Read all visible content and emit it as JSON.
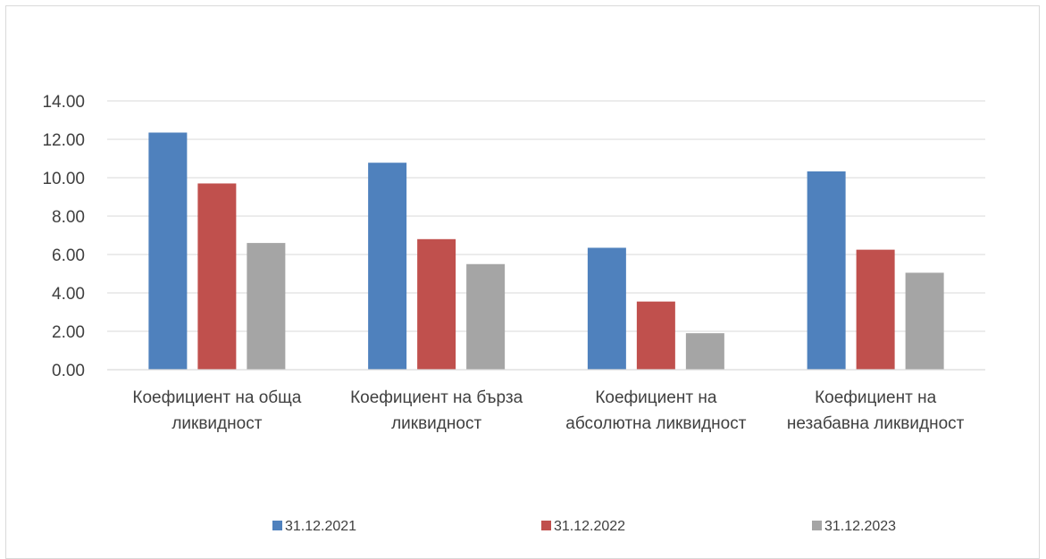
{
  "chart_data": {
    "type": "bar",
    "categories": [
      [
        "Коефициент на обща",
        "ликвидност"
      ],
      [
        "Коефициент на бърза",
        "ликвидност"
      ],
      [
        "Коефициент на",
        "абсолютна ликвидност"
      ],
      [
        "Коефициент на",
        "незабавна ликвидност"
      ]
    ],
    "series": [
      {
        "name": "31.12.2021",
        "color": "#4f81bd",
        "values": [
          12.35,
          10.78,
          6.35,
          10.33
        ]
      },
      {
        "name": "31.12.2022",
        "color": "#c0504d",
        "values": [
          9.7,
          6.8,
          3.55,
          6.25
        ]
      },
      {
        "name": "31.12.2023",
        "color": "#a5a5a5",
        "values": [
          6.6,
          5.5,
          1.9,
          5.05
        ]
      }
    ],
    "ylim": [
      0,
      14
    ],
    "yticks": [
      "0.00",
      "2.00",
      "4.00",
      "6.00",
      "8.00",
      "10.00",
      "12.00",
      "14.00"
    ],
    "grid": true,
    "legend_position": "bottom",
    "title": "",
    "xlabel": "",
    "ylabel": ""
  }
}
